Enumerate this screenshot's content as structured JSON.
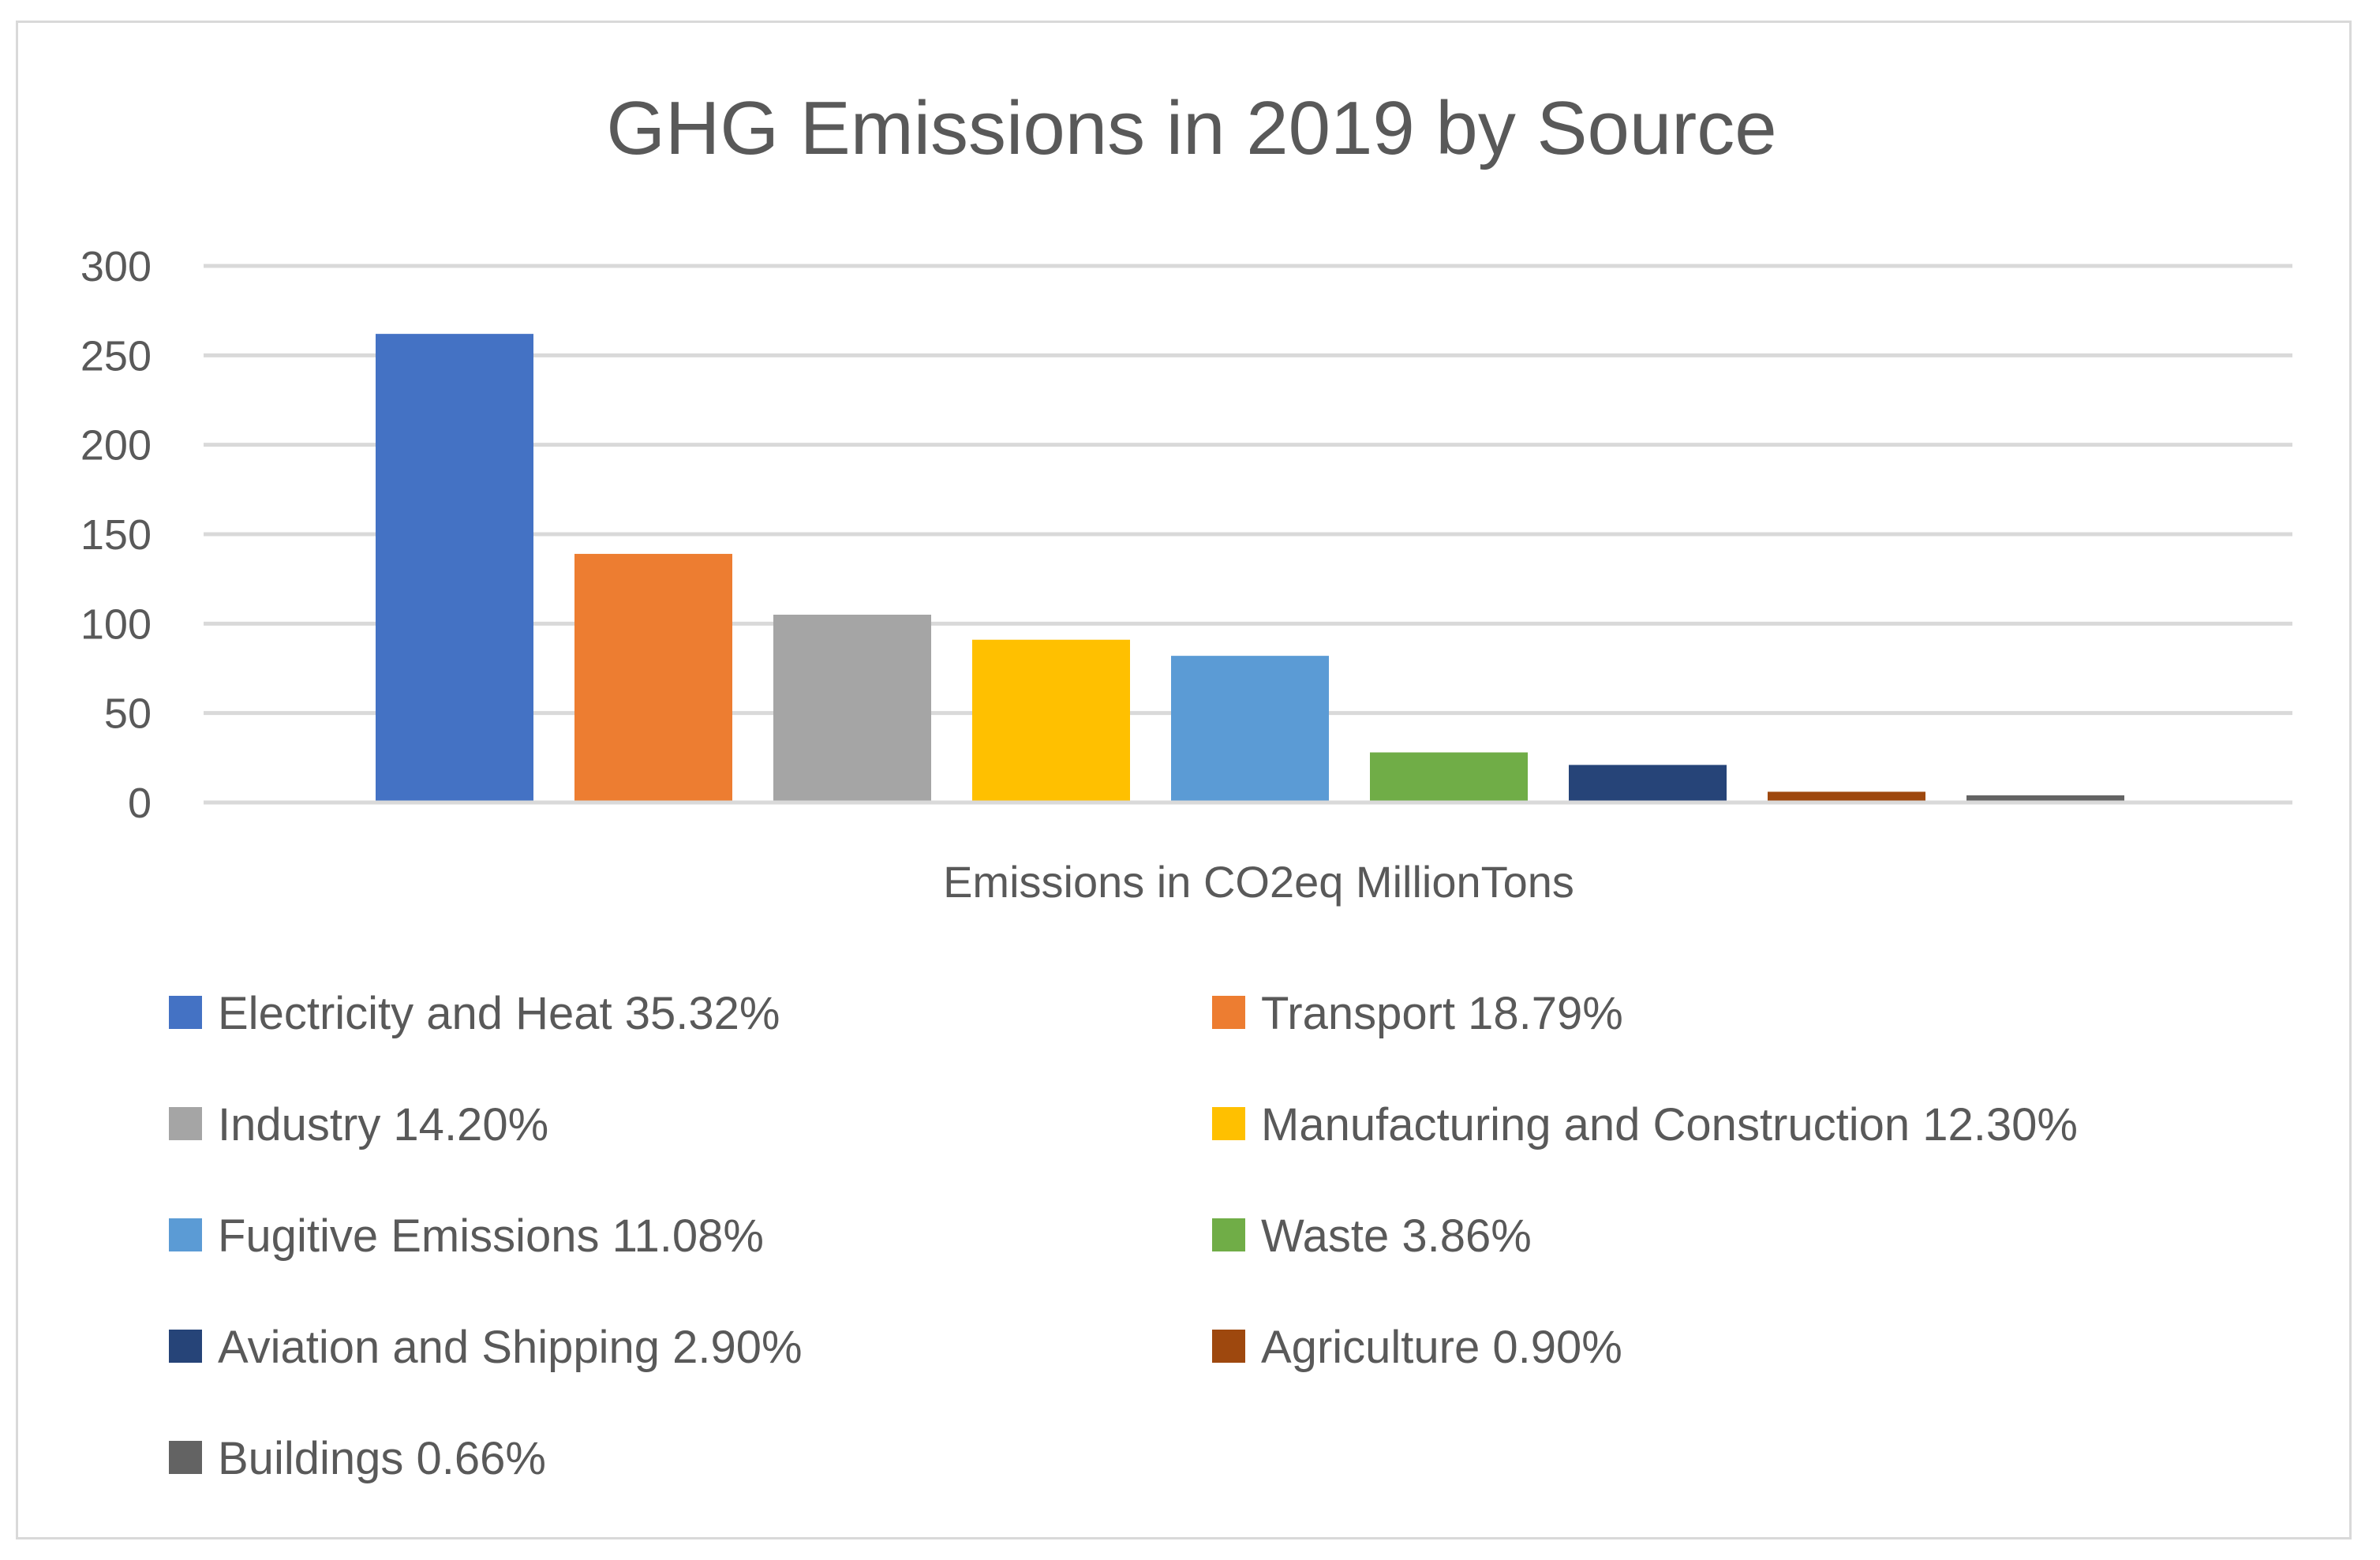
{
  "chart_data": {
    "type": "bar",
    "title": "GHG Emissions in 2019 by Source",
    "xlabel": "Emissions in CO2eq MillionTons",
    "ylabel": "",
    "ylim": [
      0,
      300
    ],
    "yticks": [
      0,
      50,
      100,
      150,
      200,
      250,
      300
    ],
    "grid": true,
    "legend_position": "bottom",
    "series": [
      {
        "name": "Electricity and Heat 35.32%",
        "value": 262,
        "color": "#4472C4"
      },
      {
        "name": "Transport 18.79%",
        "value": 139,
        "color": "#ED7D31"
      },
      {
        "name": "Industry 14.20%",
        "value": 105,
        "color": "#A5A5A5"
      },
      {
        "name": "Manufacturing and Construction 12.30%",
        "value": 91,
        "color": "#FFC000"
      },
      {
        "name": "Fugitive Emissions 11.08%",
        "value": 82,
        "color": "#5B9BD5"
      },
      {
        "name": "Waste 3.86%",
        "value": 28,
        "color": "#70AD47"
      },
      {
        "name": "Aviation and Shipping 2.90%",
        "value": 21,
        "color": "#264478"
      },
      {
        "name": "Agriculture 0.90%",
        "value": 6,
        "color": "#9E480E"
      },
      {
        "name": "Buildings 0.66%",
        "value": 4,
        "color": "#636363"
      }
    ]
  }
}
